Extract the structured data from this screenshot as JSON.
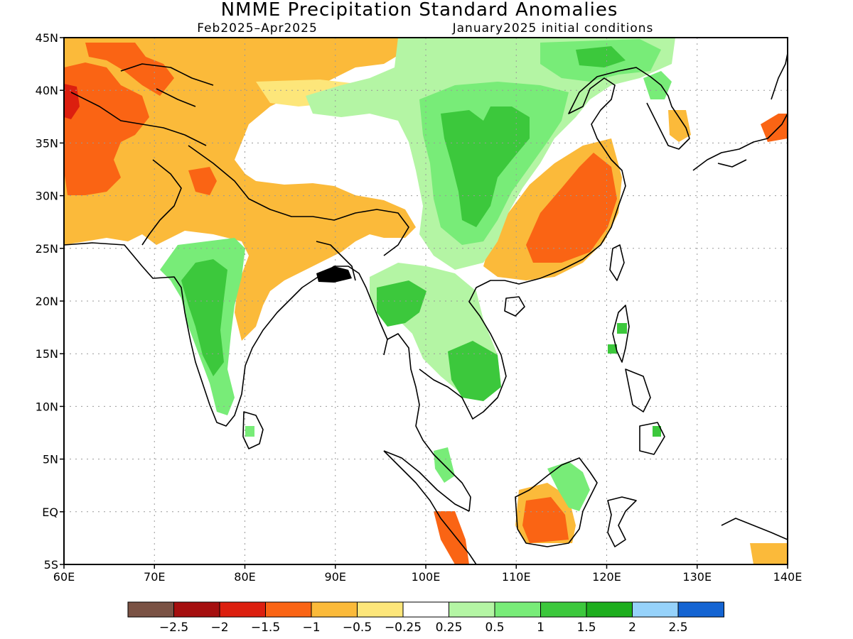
{
  "title": "NMME Precipitation Standard Anomalies",
  "subtitle_left": "Feb2025–Apr2025",
  "subtitle_right": "January2025 initial conditions",
  "map": {
    "lon_range": [
      60,
      140
    ],
    "lat_range": [
      -5,
      45
    ],
    "lon_ticks": [
      {
        "value": 60,
        "label": "60E"
      },
      {
        "value": 70,
        "label": "70E"
      },
      {
        "value": 80,
        "label": "80E"
      },
      {
        "value": 90,
        "label": "90E"
      },
      {
        "value": 100,
        "label": "100E"
      },
      {
        "value": 110,
        "label": "110E"
      },
      {
        "value": 120,
        "label": "120E"
      },
      {
        "value": 130,
        "label": "130E"
      },
      {
        "value": 140,
        "label": "140E"
      }
    ],
    "lat_ticks": [
      {
        "value": 45,
        "label": "45N"
      },
      {
        "value": 40,
        "label": "40N"
      },
      {
        "value": 35,
        "label": "35N"
      },
      {
        "value": 30,
        "label": "30N"
      },
      {
        "value": 25,
        "label": "25N"
      },
      {
        "value": 20,
        "label": "20N"
      },
      {
        "value": 15,
        "label": "15N"
      },
      {
        "value": 10,
        "label": "10N"
      },
      {
        "value": 5,
        "label": "5N"
      },
      {
        "value": 0,
        "label": "EQ"
      },
      {
        "value": -5,
        "label": "5S"
      }
    ],
    "grid": true
  },
  "colorbar": {
    "colors": [
      "#7a5244",
      "#a50f0f",
      "#dc1f0f",
      "#fa6414",
      "#fbba3a",
      "#fde67a",
      "#ffffff",
      "#b4f5a4",
      "#78ec78",
      "#3cc83c",
      "#1eae1e",
      "#96d2fa",
      "#1464d2"
    ],
    "labels": [
      "−2.5",
      "−2",
      "−1.5",
      "−1",
      "−0.5",
      "−0.25",
      "0.25",
      "0.5",
      "1",
      "1.5",
      "2",
      "2.5"
    ]
  },
  "anomaly_palette": {
    "dry_strong": "#fa6414",
    "dry_very_strong": "#dc1f0f",
    "dry": "#fbba3a",
    "dry_weak": "#fde67a",
    "wet_weak": "#b4f5a4",
    "wet": "#78ec78",
    "wet_strong": "#3cc83c",
    "coast": "#000000"
  }
}
